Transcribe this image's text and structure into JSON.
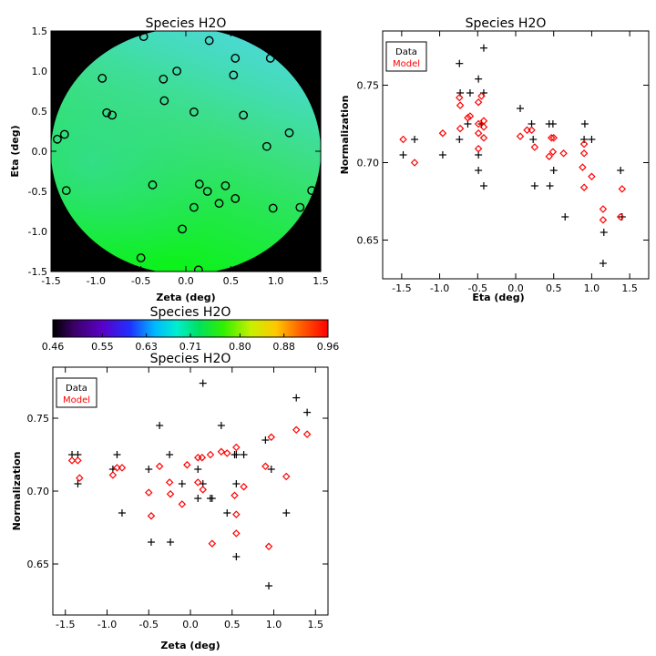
{
  "chart_data": [
    {
      "type": "heatmap",
      "title": "Species H2O",
      "xlabel": "Zeta (deg)",
      "ylabel": "Eta (deg)",
      "xlim": [
        -1.5,
        1.5
      ],
      "ylim": [
        -1.5,
        1.5
      ],
      "xticks": [
        "-1.5",
        "-1.0",
        "-0.5",
        "0.0",
        "0.5",
        "1.0",
        "1.5"
      ],
      "yticks": [
        "-1.5",
        "-1.0",
        "-0.5",
        "0.0",
        "0.5",
        "1.0",
        "1.5"
      ],
      "background_color": "#000000",
      "field_colors": {
        "top_right": "#4fd8e6",
        "left": "#3ad98a",
        "center": "#33e24e",
        "bottom_right": "#10f015"
      },
      "field_range": [
        0.63,
        0.8
      ],
      "stars": [
        [
          -0.47,
          1.43
        ],
        [
          0.26,
          1.38
        ],
        [
          -0.93,
          0.91
        ],
        [
          -0.25,
          0.9
        ],
        [
          -0.1,
          1.0
        ],
        [
          0.53,
          0.95
        ],
        [
          0.55,
          1.16
        ],
        [
          0.94,
          1.16
        ],
        [
          -0.88,
          0.48
        ],
        [
          -0.82,
          0.45
        ],
        [
          -0.24,
          0.63
        ],
        [
          0.09,
          0.49
        ],
        [
          0.64,
          0.45
        ],
        [
          -1.43,
          0.15
        ],
        [
          -1.35,
          0.21
        ],
        [
          0.9,
          0.06
        ],
        [
          1.15,
          0.23
        ],
        [
          -0.37,
          -0.42
        ],
        [
          0.15,
          -0.41
        ],
        [
          0.24,
          -0.5
        ],
        [
          0.44,
          -0.43
        ],
        [
          0.37,
          -0.65
        ],
        [
          0.55,
          -0.59
        ],
        [
          -1.33,
          -0.49
        ],
        [
          0.97,
          -0.71
        ],
        [
          1.27,
          -0.7
        ],
        [
          1.4,
          -0.49
        ],
        [
          0.09,
          -0.7
        ],
        [
          -0.04,
          -0.97
        ],
        [
          -0.5,
          -1.33
        ],
        [
          0.14,
          -1.48
        ]
      ]
    },
    {
      "type": "scatter",
      "title": "Species H2O",
      "xlabel": "Eta (deg)",
      "ylabel": "Normalization",
      "xlim": [
        -1.75,
        1.75
      ],
      "ylim": [
        0.625,
        0.785
      ],
      "xticks": [
        "-1.5",
        "-1.0",
        "-0.5",
        "0.0",
        "0.5",
        "1.0",
        "1.5"
      ],
      "yticks": [
        "0.65",
        "0.70",
        "0.75"
      ],
      "legend": {
        "position": "top-left",
        "entries": [
          "Data",
          "Model"
        ]
      },
      "series": [
        {
          "name": "Data",
          "marker": "plus",
          "color": "#000000",
          "points": [
            [
              -1.48,
              0.705
            ],
            [
              -1.33,
              0.715
            ],
            [
              -0.96,
              0.705
            ],
            [
              -0.74,
              0.764
            ],
            [
              -0.73,
              0.745
            ],
            [
              -0.63,
              0.725
            ],
            [
              -0.6,
              0.745
            ],
            [
              -0.49,
              0.705
            ],
            [
              -0.49,
              0.754
            ],
            [
              -0.45,
              0.725
            ],
            [
              -0.42,
              0.774
            ],
            [
              -0.42,
              0.745
            ],
            [
              -0.49,
              0.695
            ],
            [
              -0.42,
              0.685
            ],
            [
              0.06,
              0.735
            ],
            [
              0.21,
              0.725
            ],
            [
              0.23,
              0.715
            ],
            [
              0.25,
              0.685
            ],
            [
              0.44,
              0.725
            ],
            [
              0.49,
              0.725
            ],
            [
              0.45,
              0.685
            ],
            [
              0.5,
              0.695
            ],
            [
              0.91,
              0.725
            ],
            [
              0.9,
              0.715
            ],
            [
              1.0,
              0.715
            ],
            [
              0.65,
              0.665
            ],
            [
              1.16,
              0.655
            ],
            [
              1.15,
              0.635
            ],
            [
              1.38,
              0.695
            ],
            [
              1.4,
              0.665
            ],
            [
              -0.74,
              0.715
            ]
          ]
        },
        {
          "name": "Model",
          "marker": "diamond",
          "color": "#ff0000",
          "points": [
            [
              -1.48,
              0.715
            ],
            [
              -1.33,
              0.7
            ],
            [
              -0.96,
              0.719
            ],
            [
              -0.74,
              0.742
            ],
            [
              -0.73,
              0.737
            ],
            [
              -0.63,
              0.729
            ],
            [
              -0.6,
              0.73
            ],
            [
              -0.49,
              0.725
            ],
            [
              -0.49,
              0.739
            ],
            [
              -0.45,
              0.743
            ],
            [
              -0.42,
              0.723
            ],
            [
              -0.42,
              0.727
            ],
            [
              -0.49,
              0.709
            ],
            [
              -0.42,
              0.716
            ],
            [
              0.06,
              0.717
            ],
            [
              0.15,
              0.721
            ],
            [
              0.21,
              0.721
            ],
            [
              0.25,
              0.71
            ],
            [
              0.44,
              0.704
            ],
            [
              0.47,
              0.716
            ],
            [
              0.5,
              0.716
            ],
            [
              0.49,
              0.707
            ],
            [
              0.63,
              0.706
            ],
            [
              0.9,
              0.712
            ],
            [
              0.88,
              0.697
            ],
            [
              0.9,
              0.684
            ],
            [
              1.0,
              0.691
            ],
            [
              1.15,
              0.67
            ],
            [
              1.15,
              0.663
            ],
            [
              1.38,
              0.665
            ],
            [
              1.4,
              0.683
            ],
            [
              -0.73,
              0.722
            ],
            [
              -0.49,
              0.719
            ],
            [
              0.9,
              0.706
            ]
          ]
        }
      ]
    },
    {
      "type": "colorbar",
      "title": "Species H2O",
      "tick_labels": [
        "0.46",
        "0.55",
        "0.63",
        "0.71",
        "0.80",
        "0.88",
        "0.96"
      ],
      "range": [
        0.46,
        0.96
      ],
      "colors": [
        "#000000",
        "#3d006b",
        "#5a00c8",
        "#2030ff",
        "#00b8ff",
        "#00eed0",
        "#00e060",
        "#30f000",
        "#c8f000",
        "#ffc800",
        "#ff6000",
        "#ff0000"
      ]
    },
    {
      "type": "scatter",
      "title": "Species H2O",
      "xlabel": "Zeta (deg)",
      "ylabel": "Normalization",
      "xlim": [
        -1.65,
        1.65
      ],
      "ylim": [
        0.615,
        0.785
      ],
      "xticks": [
        "-1.5",
        "-1.0",
        "-0.5",
        "0.0",
        "0.5",
        "1.0",
        "1.5"
      ],
      "yticks": [
        "0.65",
        "0.70",
        "0.75"
      ],
      "legend": {
        "position": "top-left",
        "entries": [
          "Data",
          "Model"
        ]
      },
      "series": [
        {
          "name": "Data",
          "marker": "plus",
          "color": "#000000",
          "points": [
            [
              -1.42,
              0.725
            ],
            [
              -1.35,
              0.725
            ],
            [
              -1.35,
              0.705
            ],
            [
              -0.93,
              0.715
            ],
            [
              -0.88,
              0.725
            ],
            [
              -0.82,
              0.685
            ],
            [
              -0.5,
              0.715
            ],
            [
              -0.47,
              0.665
            ],
            [
              -0.37,
              0.745
            ],
            [
              -0.25,
              0.725
            ],
            [
              -0.24,
              0.665
            ],
            [
              -0.1,
              0.705
            ],
            [
              0.09,
              0.715
            ],
            [
              0.09,
              0.695
            ],
            [
              0.15,
              0.774
            ],
            [
              0.15,
              0.705
            ],
            [
              0.24,
              0.695
            ],
            [
              0.26,
              0.695
            ],
            [
              0.37,
              0.745
            ],
            [
              0.44,
              0.685
            ],
            [
              0.53,
              0.725
            ],
            [
              0.55,
              0.725
            ],
            [
              0.55,
              0.705
            ],
            [
              0.55,
              0.655
            ],
            [
              0.64,
              0.725
            ],
            [
              0.9,
              0.735
            ],
            [
              0.94,
              0.635
            ],
            [
              0.97,
              0.715
            ],
            [
              1.15,
              0.685
            ],
            [
              1.27,
              0.764
            ],
            [
              1.4,
              0.754
            ]
          ]
        },
        {
          "name": "Model",
          "marker": "diamond",
          "color": "#ff0000",
          "points": [
            [
              -1.42,
              0.721
            ],
            [
              -1.35,
              0.721
            ],
            [
              -1.33,
              0.709
            ],
            [
              -0.93,
              0.711
            ],
            [
              -0.88,
              0.716
            ],
            [
              -0.82,
              0.716
            ],
            [
              -0.5,
              0.699
            ],
            [
              -0.47,
              0.683
            ],
            [
              -0.37,
              0.717
            ],
            [
              -0.25,
              0.706
            ],
            [
              -0.24,
              0.698
            ],
            [
              -0.1,
              0.691
            ],
            [
              -0.04,
              0.718
            ],
            [
              0.09,
              0.723
            ],
            [
              0.09,
              0.706
            ],
            [
              0.14,
              0.723
            ],
            [
              0.15,
              0.701
            ],
            [
              0.24,
              0.725
            ],
            [
              0.26,
              0.664
            ],
            [
              0.37,
              0.727
            ],
            [
              0.44,
              0.726
            ],
            [
              0.53,
              0.697
            ],
            [
              0.55,
              0.73
            ],
            [
              0.55,
              0.684
            ],
            [
              0.55,
              0.671
            ],
            [
              0.64,
              0.703
            ],
            [
              0.9,
              0.717
            ],
            [
              0.94,
              0.662
            ],
            [
              0.97,
              0.737
            ],
            [
              1.15,
              0.71
            ],
            [
              1.27,
              0.742
            ],
            [
              1.4,
              0.739
            ]
          ]
        }
      ]
    }
  ]
}
